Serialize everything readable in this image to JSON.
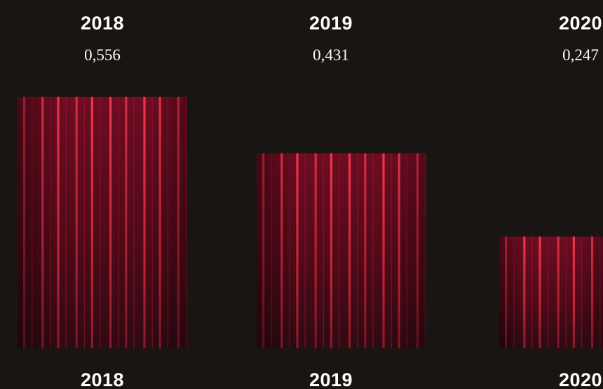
{
  "chart_data": {
    "type": "bar",
    "categories": [
      "2018",
      "2019",
      "2020"
    ],
    "values": [
      "0,556",
      "0,431",
      "0,247"
    ],
    "numeric_values": [
      0.556,
      0.431,
      0.247
    ],
    "bottom_labels": [
      "2018",
      "2019",
      "2020"
    ],
    "ylim": [
      0,
      0.62
    ],
    "grid": false,
    "legend": "none",
    "colors": {
      "background": "#181512",
      "bar_base": "#5a0a1e",
      "bar_stripe": "#e0283c",
      "text": "#ffffff"
    }
  }
}
